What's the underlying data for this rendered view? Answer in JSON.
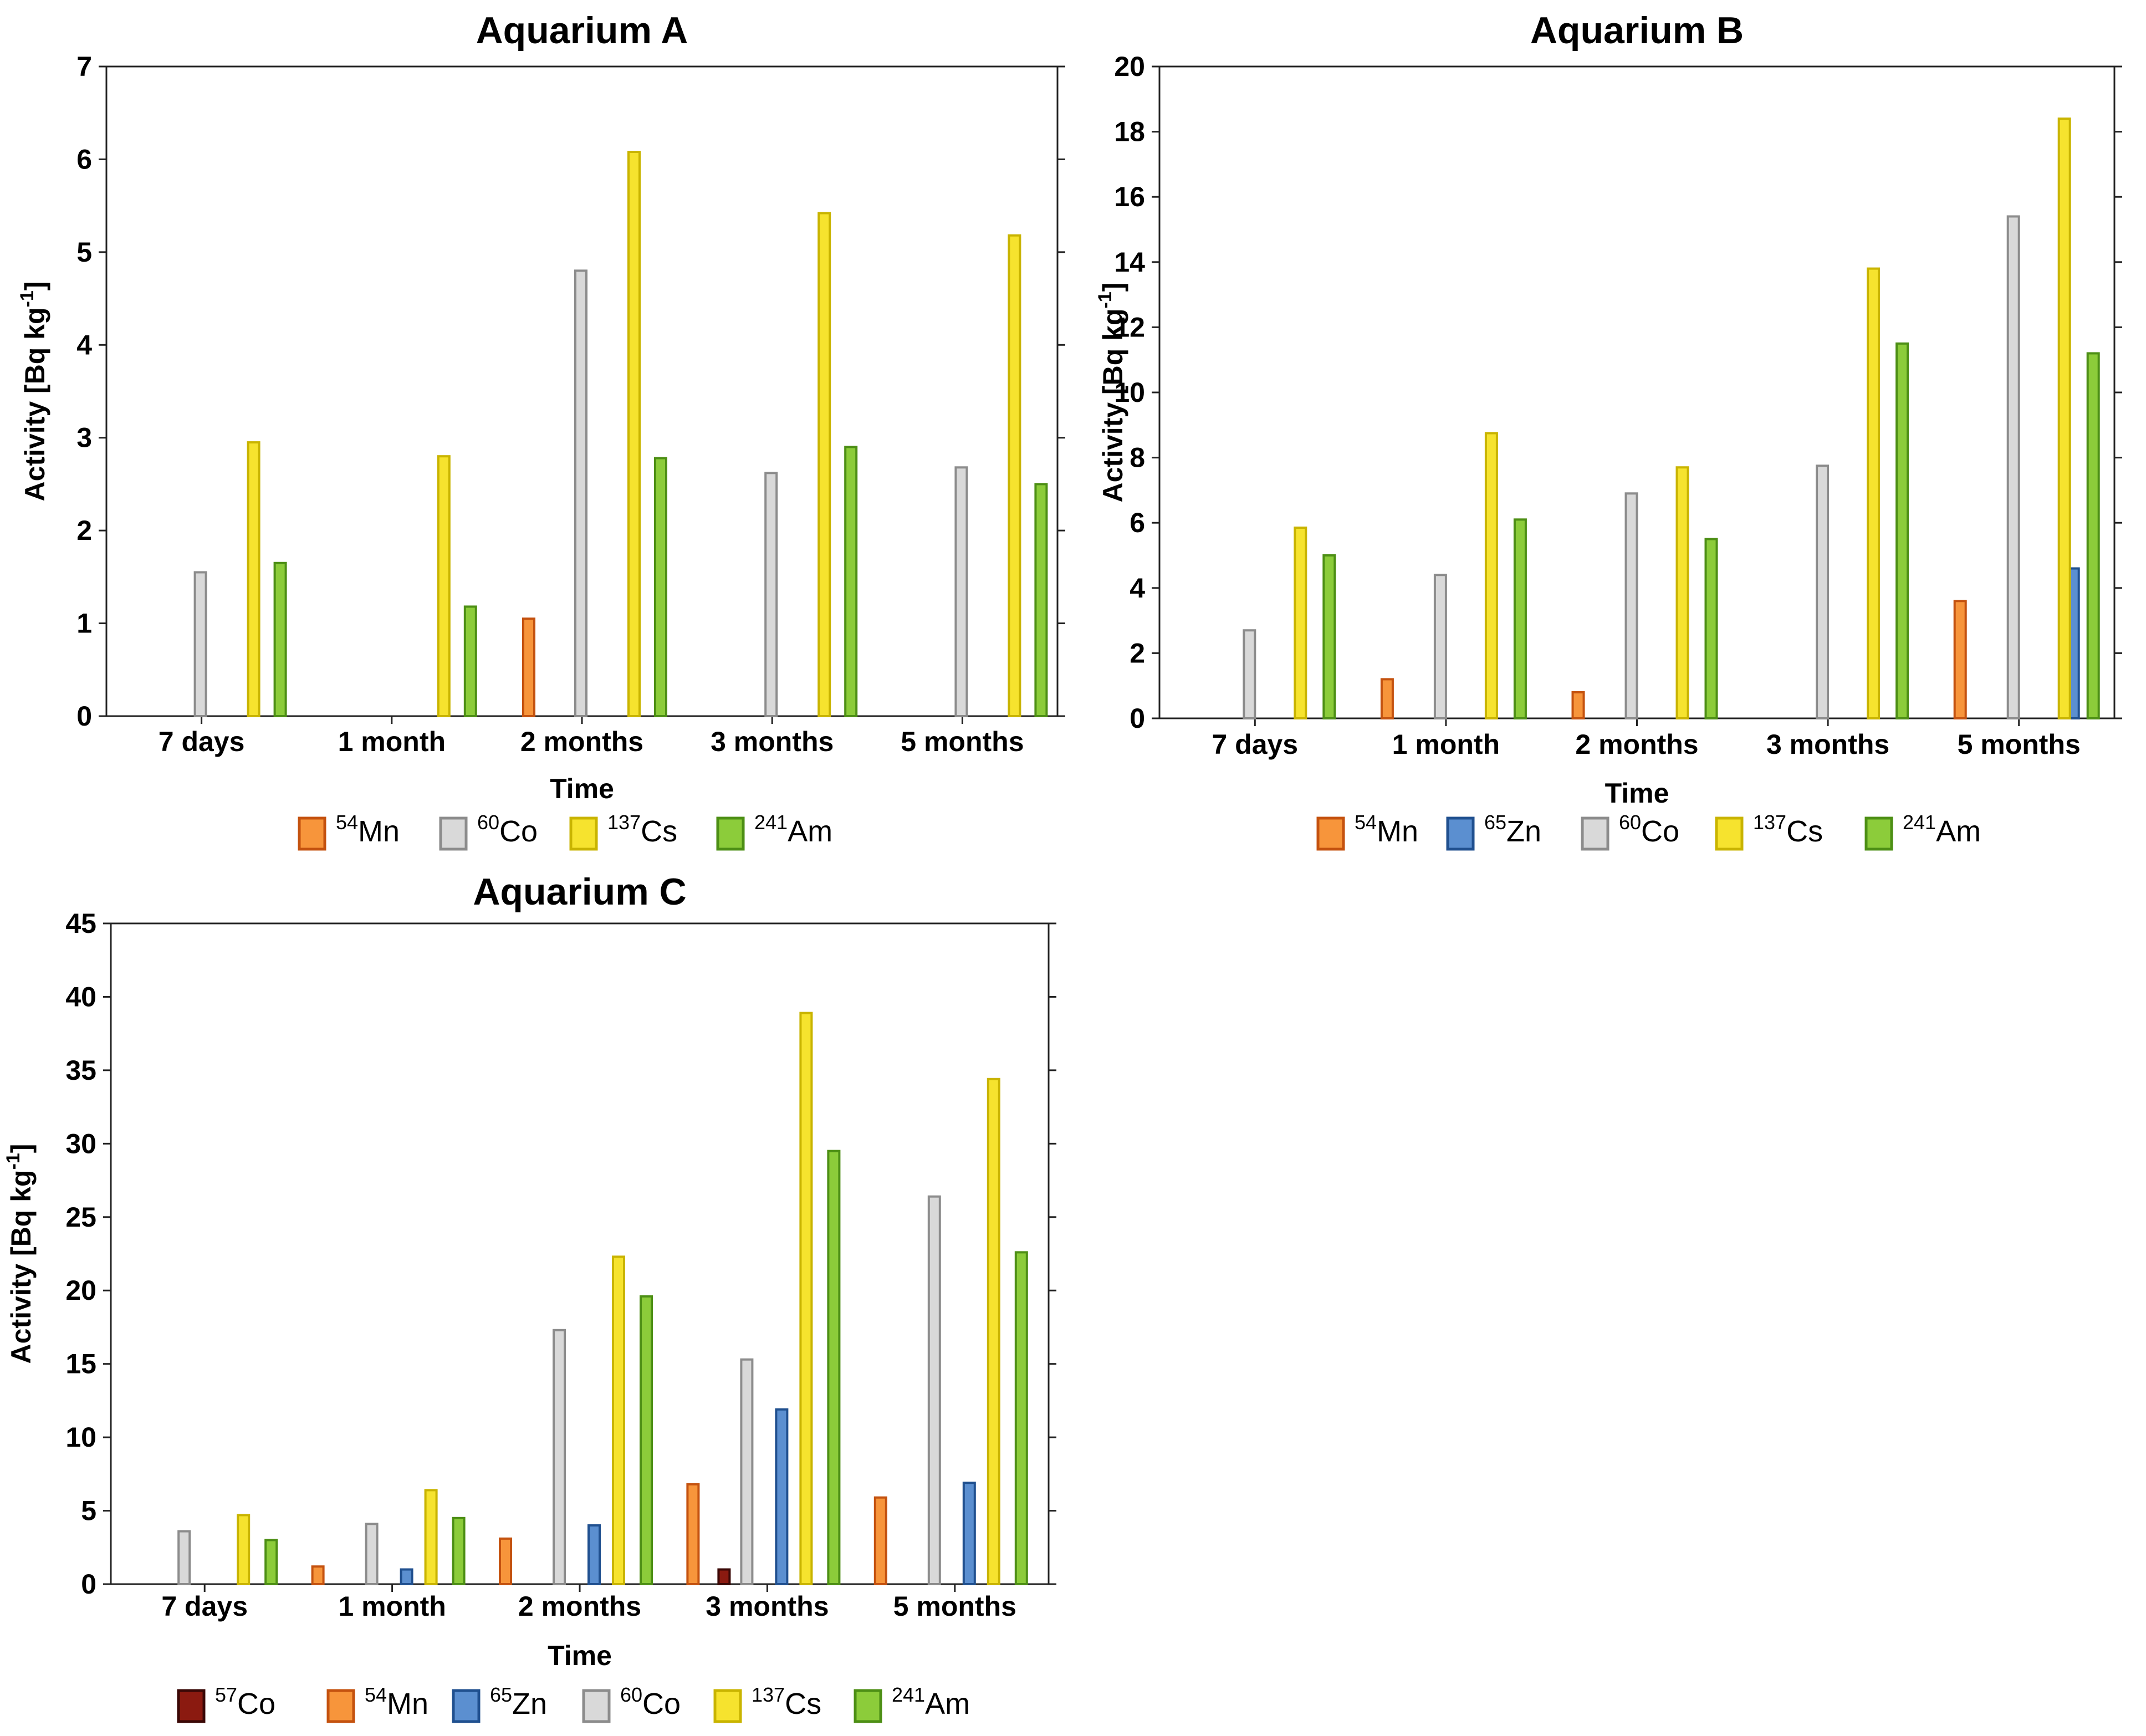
{
  "colors": {
    "Co57": {
      "fill": "#8b1a10",
      "stroke": "#3a0806"
    },
    "Mn54": {
      "fill": "#f7953b",
      "stroke": "#c4520f"
    },
    "Zn65": {
      "fill": "#5b8fd0",
      "stroke": "#20508f"
    },
    "Co60": {
      "fill": "#d9d9d9",
      "stroke": "#8c8c8c"
    },
    "Cs137": {
      "fill": "#f6e32e",
      "stroke": "#c9b400"
    },
    "Am241": {
      "fill": "#8ccc3a",
      "stroke": "#4d8f15"
    }
  },
  "chart_data": [
    {
      "type": "bar",
      "title": "Aquarium A",
      "xlabel": "Time",
      "ylabel": "Activity [Bq kg",
      "ylabel_sup": "-1",
      "ylabel_end": "]",
      "ylim": [
        0,
        7
      ],
      "yticks": [
        "0",
        "1",
        "2",
        "3",
        "4",
        "5",
        "6",
        "7"
      ],
      "categories": [
        "7 days",
        "1 month",
        "2 months",
        "3 months",
        "5 months"
      ],
      "series": [
        {
          "key": "Mn54",
          "mass": "54",
          "element": "Mn",
          "values": [
            null,
            null,
            1.05,
            null,
            null
          ]
        },
        {
          "key": "Co60",
          "mass": "60",
          "element": "Co",
          "values": [
            1.55,
            null,
            4.8,
            2.62,
            2.68
          ]
        },
        {
          "key": "Cs137",
          "mass": "137",
          "element": "Cs",
          "values": [
            2.95,
            2.8,
            6.08,
            5.42,
            5.18
          ]
        },
        {
          "key": "Am241",
          "mass": "241",
          "element": "Am",
          "values": [
            1.65,
            1.18,
            2.78,
            2.9,
            2.5
          ]
        }
      ]
    },
    {
      "type": "bar",
      "title": "Aquarium B",
      "xlabel": "Time",
      "ylabel": "Activity [Bq kg",
      "ylabel_sup": "-1",
      "ylabel_end": "]",
      "ylim": [
        0,
        20
      ],
      "yticks": [
        "0",
        "2",
        "4",
        "6",
        "8",
        "10",
        "12",
        "14",
        "16",
        "18",
        "20"
      ],
      "categories": [
        "7 days",
        "1 month",
        "2 months",
        "3 months",
        "5 months"
      ],
      "series": [
        {
          "key": "Mn54",
          "mass": "54",
          "element": "Mn",
          "values": [
            null,
            1.2,
            0.8,
            null,
            3.6
          ]
        },
        {
          "key": "Zn65",
          "mass": "65",
          "element": "Zn",
          "values": [
            null,
            null,
            null,
            null,
            4.6
          ]
        },
        {
          "key": "Co60",
          "mass": "60",
          "element": "Co",
          "values": [
            2.7,
            4.4,
            6.9,
            7.75,
            15.4
          ]
        },
        {
          "key": "Cs137",
          "mass": "137",
          "element": "Cs",
          "values": [
            5.85,
            8.75,
            7.7,
            13.8,
            18.4
          ]
        },
        {
          "key": "Am241",
          "mass": "241",
          "element": "Am",
          "values": [
            5.0,
            6.1,
            5.5,
            11.5,
            11.2
          ]
        }
      ]
    },
    {
      "type": "bar",
      "title": "Aquarium C",
      "xlabel": "Time",
      "ylabel": "Activity [Bq kg",
      "ylabel_sup": "-1",
      "ylabel_end": "]",
      "ylim": [
        0,
        45
      ],
      "yticks": [
        "0",
        "5",
        "10",
        "15",
        "20",
        "25",
        "30",
        "35",
        "40",
        "45"
      ],
      "categories": [
        "7 days",
        "1 month",
        "2 months",
        "3 months",
        "5 months"
      ],
      "series": [
        {
          "key": "Co57",
          "mass": "57",
          "element": "Co",
          "values": [
            null,
            null,
            null,
            1.0,
            null
          ]
        },
        {
          "key": "Mn54",
          "mass": "54",
          "element": "Mn",
          "values": [
            null,
            1.2,
            3.1,
            6.8,
            5.9
          ]
        },
        {
          "key": "Zn65",
          "mass": "65",
          "element": "Zn",
          "values": [
            null,
            1.0,
            4.0,
            11.9,
            6.9
          ]
        },
        {
          "key": "Co60",
          "mass": "60",
          "element": "Co",
          "values": [
            3.6,
            4.1,
            17.3,
            15.3,
            26.4
          ]
        },
        {
          "key": "Cs137",
          "mass": "137",
          "element": "Cs",
          "values": [
            4.7,
            6.4,
            22.3,
            38.9,
            34.4
          ]
        },
        {
          "key": "Am241",
          "mass": "241",
          "element": "Am",
          "values": [
            3.0,
            4.5,
            19.6,
            29.5,
            22.6
          ]
        }
      ]
    }
  ]
}
